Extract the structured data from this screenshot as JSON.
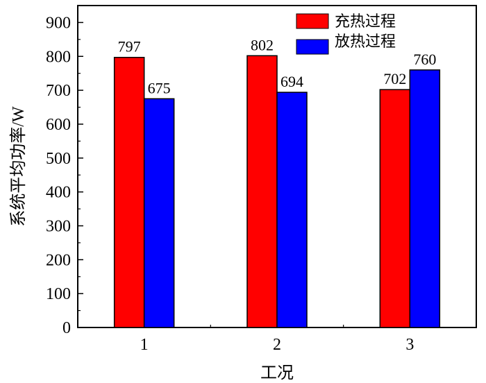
{
  "chart_data": {
    "type": "bar",
    "title": "",
    "xlabel": "工况",
    "ylabel": "系统平均功率/W",
    "categories": [
      "1",
      "2",
      "3"
    ],
    "series": [
      {
        "name": "充热过程",
        "color": "#ff0000",
        "values": [
          797,
          802,
          702
        ]
      },
      {
        "name": "放热过程",
        "color": "#0000ff",
        "values": [
          675,
          694,
          760
        ]
      }
    ],
    "ylim": [
      0,
      950
    ],
    "yticks": [
      0,
      100,
      200,
      300,
      400,
      500,
      600,
      700,
      800,
      900
    ],
    "yticks_labels": [
      "0",
      "100",
      "200",
      "300",
      "400",
      "500",
      "600",
      "700",
      "800",
      "900"
    ],
    "data_labels": [
      [
        "797",
        "802",
        "702"
      ],
      [
        "675",
        "694",
        "760"
      ]
    ],
    "legend": {
      "position": "top-right"
    },
    "grid": false
  }
}
